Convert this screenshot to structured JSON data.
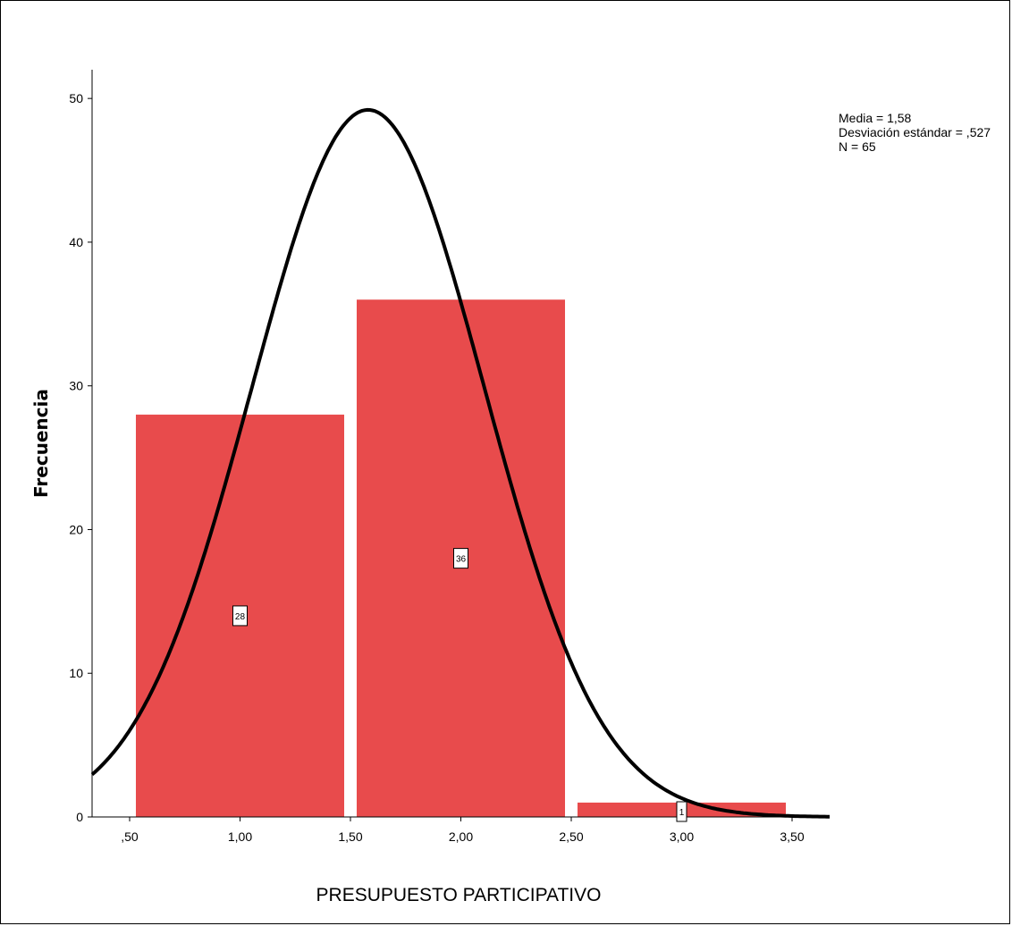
{
  "chart_data": {
    "type": "bar",
    "subtype": "histogram",
    "xlabel": "PRESUPUESTO PARTICIPATIVO",
    "ylabel": "Frecuencia",
    "xlim": [
      0.33,
      3.67
    ],
    "ylim": [
      0,
      52
    ],
    "x_ticks": [
      {
        "value": 0.5,
        "label": ",50"
      },
      {
        "value": 1.0,
        "label": "1,00"
      },
      {
        "value": 1.5,
        "label": "1,50"
      },
      {
        "value": 2.0,
        "label": "2,00"
      },
      {
        "value": 2.5,
        "label": "2,50"
      },
      {
        "value": 3.0,
        "label": "3,00"
      },
      {
        "value": 3.5,
        "label": "3,50"
      }
    ],
    "y_ticks": [
      0,
      10,
      20,
      30,
      40,
      50
    ],
    "bins": [
      {
        "from": 0.5,
        "to": 1.5,
        "value": 28,
        "label": "28"
      },
      {
        "from": 1.5,
        "to": 2.5,
        "value": 36,
        "label": "36"
      },
      {
        "from": 2.5,
        "to": 3.5,
        "value": 1,
        "label": "1"
      }
    ],
    "normal_curve": {
      "mean": 1.58,
      "sd": 0.527,
      "n": 65,
      "bin_width": 1.0
    },
    "bar_color": "#e84b4c",
    "curve_color": "#000000",
    "grid": false,
    "legend": "none",
    "stats_position": "top-right",
    "stats": [
      "Media = 1,58",
      "Desviación estándar = ,527",
      "N = 65"
    ]
  }
}
